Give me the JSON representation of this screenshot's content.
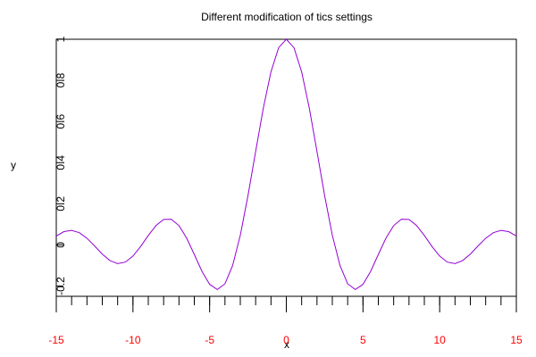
{
  "chart_data": {
    "type": "line",
    "title": "Different modification of tics settings",
    "xlabel": "x",
    "ylabel": "y",
    "x": [
      -15,
      -14.5,
      -14,
      -13.5,
      -13,
      -12.5,
      -12,
      -11.5,
      -11,
      -10.5,
      -10,
      -9.5,
      -9,
      -8.5,
      -8,
      -7.5,
      -7,
      -6.5,
      -6,
      -5.5,
      -5,
      -4.5,
      -4,
      -3.5,
      -3,
      -2.5,
      -2,
      -1.5,
      -1,
      -0.5,
      0,
      0.5,
      1,
      1.5,
      2,
      2.5,
      3,
      3.5,
      4,
      4.5,
      5,
      5.5,
      6,
      6.5,
      7,
      7.5,
      8,
      8.5,
      9,
      9.5,
      10,
      10.5,
      11,
      11.5,
      12,
      12.5,
      13,
      13.5,
      14,
      14.5,
      15
    ],
    "series": [
      {
        "color": "#9400d3",
        "values": [
          0.0434,
          0.0645,
          0.0708,
          0.0595,
          0.0323,
          -0.0053,
          -0.0447,
          -0.0761,
          -0.0909,
          -0.0838,
          -0.0544,
          -0.0079,
          0.0458,
          0.0939,
          0.1237,
          0.1251,
          0.0939,
          0.0331,
          -0.0466,
          -0.1283,
          -0.1918,
          -0.2172,
          -0.1892,
          -0.1002,
          0.047,
          0.2394,
          0.4546,
          0.665,
          0.8415,
          0.9589,
          1,
          0.9589,
          0.8415,
          0.665,
          0.4546,
          0.2394,
          0.047,
          -0.1002,
          -0.1892,
          -0.2172,
          -0.1918,
          -0.1283,
          -0.0466,
          0.0331,
          0.0939,
          0.1251,
          0.1237,
          0.0939,
          0.0458,
          -0.0079,
          -0.0544,
          -0.0838,
          -0.0909,
          -0.0761,
          -0.0447,
          -0.0053,
          0.0323,
          0.0595,
          0.0708,
          0.0645,
          0.0434
        ]
      }
    ],
    "xlim": [
      -15,
      15
    ],
    "ylim": [
      -0.25,
      1
    ],
    "xticks": [
      -15,
      -10,
      -5,
      0,
      5,
      10,
      15
    ],
    "xminorticks": [
      -15,
      -14,
      -13,
      -12,
      -11,
      -10,
      -9,
      -8,
      -7,
      -6,
      -5,
      -4,
      -3,
      -2,
      -1,
      0,
      1,
      2,
      3,
      4,
      5,
      6,
      7,
      8,
      9,
      10,
      11,
      12,
      13,
      14,
      15
    ],
    "xtick_color": "#ff0000",
    "yticks": [
      -0.2,
      0,
      0.2,
      0.4,
      0.6,
      0.8,
      1
    ]
  }
}
